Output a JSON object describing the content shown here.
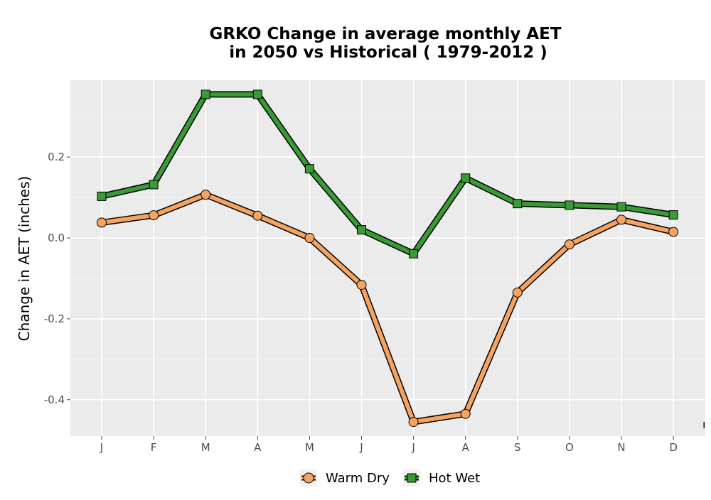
{
  "chart_data": {
    "type": "line",
    "title_line1": "GRKO  Change in average monthly AET",
    "title_line2": "in 2050 vs Historical ( 1979-2012 )",
    "xlabel": "",
    "ylabel": "Change in AET (inches)",
    "categories": [
      "J",
      "F",
      "M",
      "A",
      "M",
      "J",
      "J",
      "A",
      "S",
      "O",
      "N",
      "D"
    ],
    "ylim": [
      -0.49,
      0.39
    ],
    "yticks": [
      0.2,
      0.0,
      -0.2,
      -0.4
    ],
    "ytick_labels": [
      "0.2",
      "0.0",
      "-0.2",
      "-0.4"
    ],
    "grid": true,
    "legend_position": "bottom",
    "series": [
      {
        "name": "Warm Dry",
        "marker": "circle",
        "color": "#f4a460",
        "values": [
          0.038,
          0.056,
          0.107,
          0.055,
          0.0,
          -0.116,
          -0.455,
          -0.435,
          -0.135,
          -0.016,
          0.045,
          0.015
        ]
      },
      {
        "name": "Hot Wet",
        "marker": "square",
        "color": "#3a9a35",
        "values": [
          0.103,
          0.132,
          0.355,
          0.355,
          0.171,
          0.02,
          -0.039,
          0.148,
          0.085,
          0.081,
          0.077,
          0.057
        ]
      }
    ],
    "corner_mark": "ı"
  }
}
